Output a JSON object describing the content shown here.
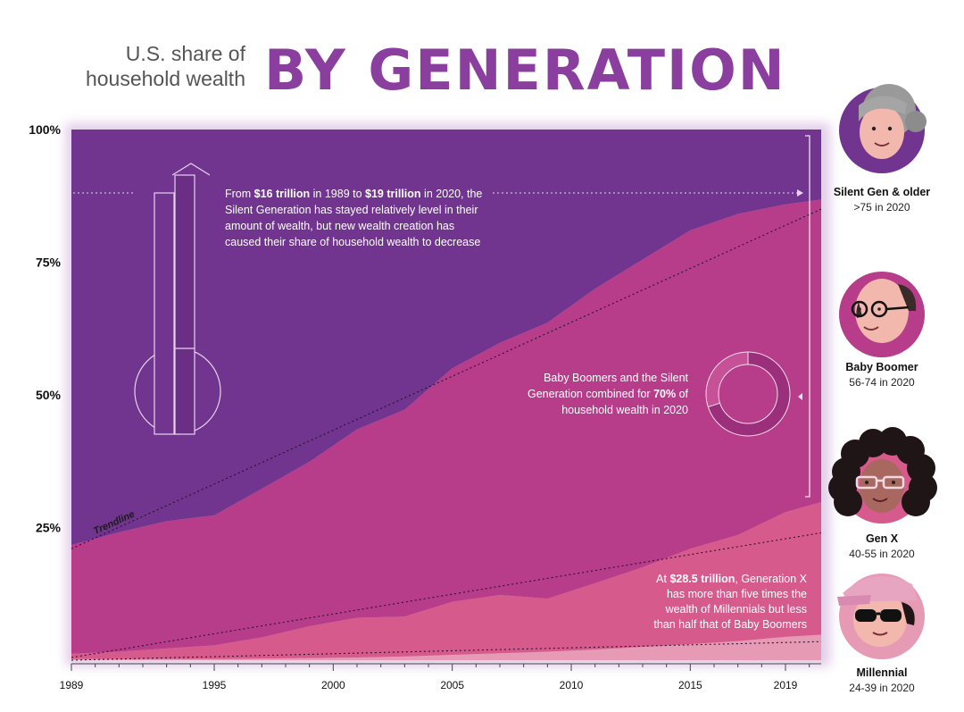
{
  "header": {
    "subtitle_line1": "U.S. share of",
    "subtitle_line2": "household wealth",
    "title": "BY GENERATION"
  },
  "chart_data": {
    "type": "area",
    "stacked": true,
    "x_ticks": [
      1989,
      1995,
      2000,
      2005,
      2010,
      2015,
      2019
    ],
    "xlim": [
      1989,
      2020.5
    ],
    "ylim": [
      0,
      100
    ],
    "y_ticks": [
      {
        "value": 25,
        "label": "25%"
      },
      {
        "value": 50,
        "label": "50%"
      },
      {
        "value": 75,
        "label": "75%"
      },
      {
        "value": 100,
        "label": "100%"
      }
    ],
    "x": [
      1989,
      1991,
      1993,
      1995,
      1997,
      1999,
      2001,
      2003,
      2005,
      2007,
      2009,
      2011,
      2013,
      2015,
      2017,
      2019,
      2020.5
    ],
    "series": [
      {
        "key": "millennial",
        "color": "#e79ab4",
        "values": [
          0.2,
          0.2,
          0.2,
          0.2,
          0.3,
          0.4,
          0.5,
          0.7,
          1.0,
          1.3,
          1.6,
          2.0,
          2.5,
          3.0,
          3.6,
          4.4,
          4.8
        ]
      },
      {
        "key": "genx",
        "color": "#d65b8c",
        "values": [
          1.0,
          1.4,
          2.0,
          2.6,
          4.0,
          6.0,
          7.5,
          7.5,
          10.0,
          11.0,
          10.0,
          12.5,
          15.0,
          18.0,
          20.0,
          23.5,
          25.0
        ]
      },
      {
        "key": "boomer",
        "color": "#b73c8a",
        "values": [
          20.5,
          22.5,
          24.0,
          24.5,
          28.0,
          31.0,
          35.5,
          39.0,
          44.0,
          47.5,
          52.0,
          55.5,
          58.0,
          60.0,
          60.5,
          58.0,
          57.0
        ]
      },
      {
        "key": "silent",
        "color": "#71348f",
        "values": [
          78.3,
          75.9,
          73.8,
          72.7,
          67.7,
          62.6,
          56.5,
          52.8,
          45.0,
          40.2,
          36.4,
          30.0,
          24.5,
          19.0,
          15.9,
          14.1,
          13.2
        ]
      }
    ],
    "trendlines": [
      {
        "label": "Trendline",
        "from": [
          1989,
          21
        ],
        "to": [
          2020.5,
          85
        ]
      },
      {
        "label": "",
        "from": [
          1989,
          0.5
        ],
        "to": [
          2020.5,
          24
        ]
      },
      {
        "label": "",
        "from": [
          1989,
          0
        ],
        "to": [
          2020.5,
          3.5
        ]
      }
    ],
    "annotations": [
      {
        "lines": [
          [
            {
              "t": "From "
            },
            {
              "t": "$16 trillion",
              "b": true
            },
            {
              "t": " in 1989 to "
            },
            {
              "t": "$19 trillion",
              "b": true
            },
            {
              "t": " in 2020, the"
            }
          ],
          [
            {
              "t": "Silent Generation has stayed relatively level in their"
            }
          ],
          [
            {
              "t": "amount of wealth, but new wealth creation has"
            }
          ],
          [
            {
              "t": "caused their share of household wealth to decrease"
            }
          ]
        ]
      },
      {
        "lines": [
          [
            {
              "t": "Baby Boomers and the Silent"
            }
          ],
          [
            {
              "t": "Generation combined for "
            },
            {
              "t": "70%",
              "b": true
            },
            {
              "t": " of"
            }
          ],
          [
            {
              "t": "household wealth in 2020"
            }
          ]
        ],
        "donut_value": 70
      },
      {
        "lines": [
          [
            {
              "t": "At "
            },
            {
              "t": "$28.5 trillion",
              "b": true
            },
            {
              "t": ", Generation X"
            }
          ],
          [
            {
              "t": "has more than five times the"
            }
          ],
          [
            {
              "t": "wealth of Millennials but less"
            }
          ],
          [
            {
              "t": "than half that of Baby Boomers"
            }
          ]
        ]
      }
    ]
  },
  "legend": [
    {
      "name": "Silent Gen & older",
      "age": ">75 in 2020",
      "ring_color": "#71348f",
      "icon": "silent-gen-face-icon"
    },
    {
      "name": "Baby Boomer",
      "age": "56-74 in 2020",
      "ring_color": "#b73c8a",
      "icon": "baby-boomer-face-icon"
    },
    {
      "name": "Gen X",
      "age": "40-55 in 2020",
      "ring_color": "#d65b8c",
      "icon": "gen-x-face-icon"
    },
    {
      "name": "Millennial",
      "age": "24-39 in 2020",
      "ring_color": "#e79ab4",
      "icon": "millennial-face-icon"
    }
  ]
}
